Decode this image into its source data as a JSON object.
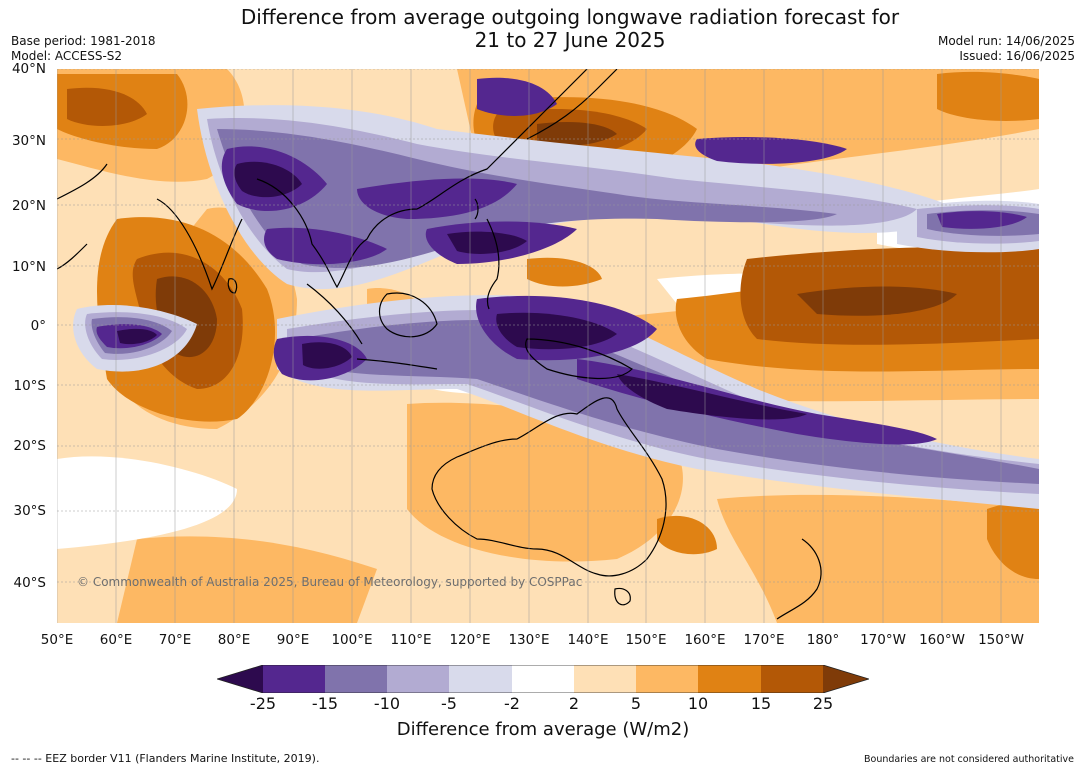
{
  "title": {
    "line1": "Difference from average outgoing longwave radiation forecast for",
    "line2": "21 to 27 June 2025"
  },
  "header": {
    "base_period": "Base period: 1981-2018",
    "model": "Model: ACCESS-S2",
    "model_run": "Model run: 14/06/2025",
    "issued": "Issued: 16/06/2025"
  },
  "map": {
    "lat_labels": [
      "40°N",
      "30°N",
      "20°N",
      "10°N",
      "0°",
      "10°S",
      "20°S",
      "30°S",
      "40°S"
    ],
    "lon_labels": [
      "50°E",
      "60°E",
      "70°E",
      "80°E",
      "90°E",
      "100°E",
      "110°E",
      "120°E",
      "130°E",
      "140°E",
      "150°E",
      "160°E",
      "170°E",
      "180°",
      "170°W",
      "160°W",
      "150°W"
    ],
    "copyright": "© Commonwealth of Australia 2025, Bureau of Meteorology, supported by COSPPac"
  },
  "colorbar": {
    "title": "Difference from average (W/m2)",
    "ticks": [
      "-25",
      "-15",
      "-10",
      "-5",
      "-2",
      "2",
      "5",
      "10",
      "15",
      "25"
    ],
    "colors": {
      "extend_low": "#2d0a4e",
      "lt_m25_to_m15": "#54278f",
      "m15_to_m10": "#8073ac",
      "m10_to_m5": "#b2abd2",
      "m5_to_m2": "#d8daeb",
      "m2_to_2": "#ffffff",
      "2_to_5": "#fee0b6",
      "5_to_10": "#fdb863",
      "10_to_15": "#e08214",
      "15_to_25": "#b35806",
      "extend_high": "#7f3b08"
    }
  },
  "footer": {
    "eez_note": "-- -- -- EEZ border V11 (Flanders Marine Institute, 2019).",
    "disclaimer": "Boundaries are not considered authoritative"
  }
}
